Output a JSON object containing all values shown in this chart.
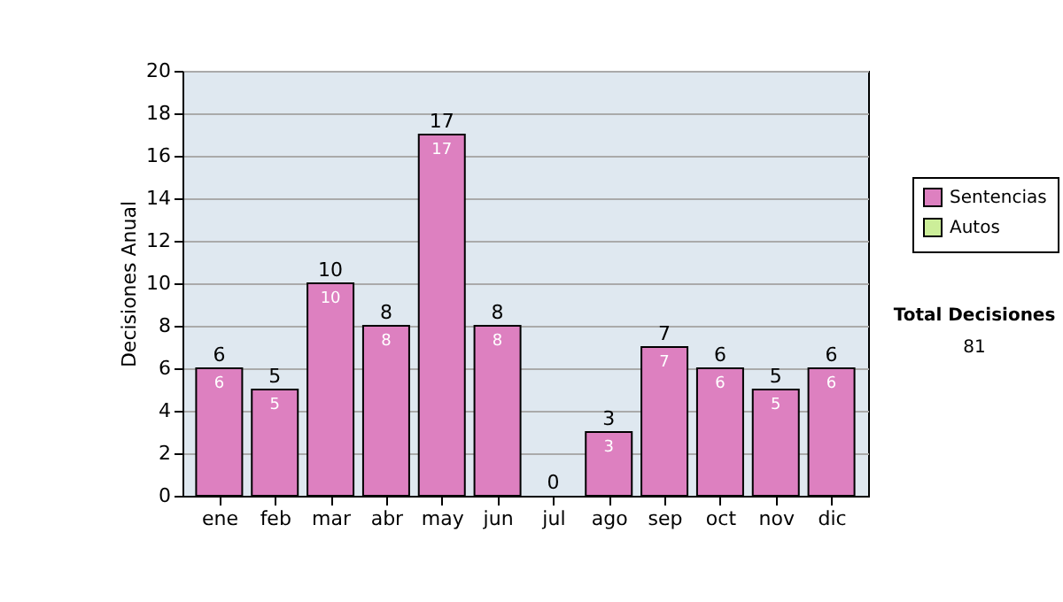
{
  "chart_data": {
    "type": "bar",
    "stacked": true,
    "ylabel": "Decisiones Anual",
    "categories": [
      "ene",
      "feb",
      "mar",
      "abr",
      "may",
      "jun",
      "jul",
      "ago",
      "sep",
      "oct",
      "nov",
      "dic"
    ],
    "series": [
      {
        "name": "Sentencias",
        "color": "#dd80c0",
        "values": [
          6,
          5,
          10,
          8,
          17,
          8,
          0,
          3,
          7,
          6,
          5,
          6
        ],
        "value_labels": [
          "6",
          "5",
          "10",
          "8",
          "17",
          "8",
          null,
          "3",
          "7",
          "6",
          "5",
          "6"
        ]
      },
      {
        "name": "Autos",
        "color": "#ccee99",
        "values": [
          0,
          0,
          0,
          0,
          0,
          0,
          0,
          0,
          0,
          0,
          0,
          0
        ]
      }
    ],
    "totals": [
      "6",
      "5",
      "10",
      "8",
      "17",
      "8",
      "0",
      "3",
      "7",
      "6",
      "5",
      "6"
    ],
    "ylim": [
      0,
      20
    ],
    "yticks": [
      0,
      2,
      4,
      6,
      8,
      10,
      12,
      14,
      16,
      18,
      20
    ],
    "grid": "y",
    "legend": "right",
    "annotations": [
      "Total Decisiones",
      "81"
    ]
  }
}
